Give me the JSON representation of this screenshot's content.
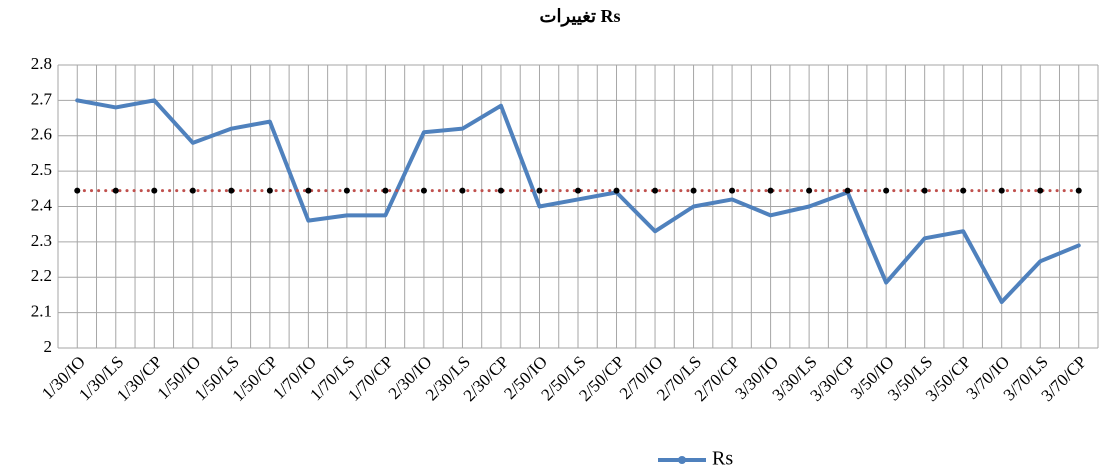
{
  "chart_data": {
    "type": "line",
    "title": "تغییرات  Rs",
    "categories": [
      "1/30/IO",
      "1/30/LS",
      "1/30/CP",
      "1/50/IO",
      "1/50/LS",
      "1/50/CP",
      "1/70/IO",
      "1/70/LS",
      "1/70/CP",
      "2/30/IO",
      "2/30/LS",
      "2/30/CP",
      "2/50/IO",
      "2/50/LS",
      "2/50/CP",
      "2/70/IO",
      "2/70/LS",
      "2/70/CP",
      "3/30/IO",
      "3/30/LS",
      "3/30/CP",
      "3/50/IO",
      "3/50/LS",
      "3/50/CP",
      "3/70/IO",
      "3/70/LS",
      "3/70/CP"
    ],
    "series": [
      {
        "name": "Rs",
        "color": "#4f81bd",
        "values": [
          2.7,
          2.68,
          2.7,
          2.58,
          2.62,
          2.64,
          2.36,
          2.375,
          2.375,
          2.61,
          2.62,
          2.685,
          2.4,
          2.42,
          2.44,
          2.33,
          2.4,
          2.42,
          2.375,
          2.4,
          2.44,
          2.185,
          2.31,
          2.33,
          2.13,
          2.245,
          2.29
        ]
      },
      {
        "color": "#c0504d",
        "values": [
          2.445,
          2.445,
          2.445,
          2.445,
          2.445,
          2.445,
          2.445,
          2.445,
          2.445,
          2.445,
          2.445,
          2.445,
          2.445,
          2.445,
          2.445,
          2.445,
          2.445,
          2.445,
          2.445,
          2.445,
          2.445,
          2.445,
          2.445,
          2.445,
          2.445,
          2.445,
          2.445
        ]
      }
    ],
    "ylim": [
      2,
      2.8
    ],
    "yticks": [
      2,
      2.1,
      2.2,
      2.3,
      2.4,
      2.5,
      2.6,
      2.7,
      2.8
    ],
    "grid": true,
    "legend": "bottom"
  }
}
